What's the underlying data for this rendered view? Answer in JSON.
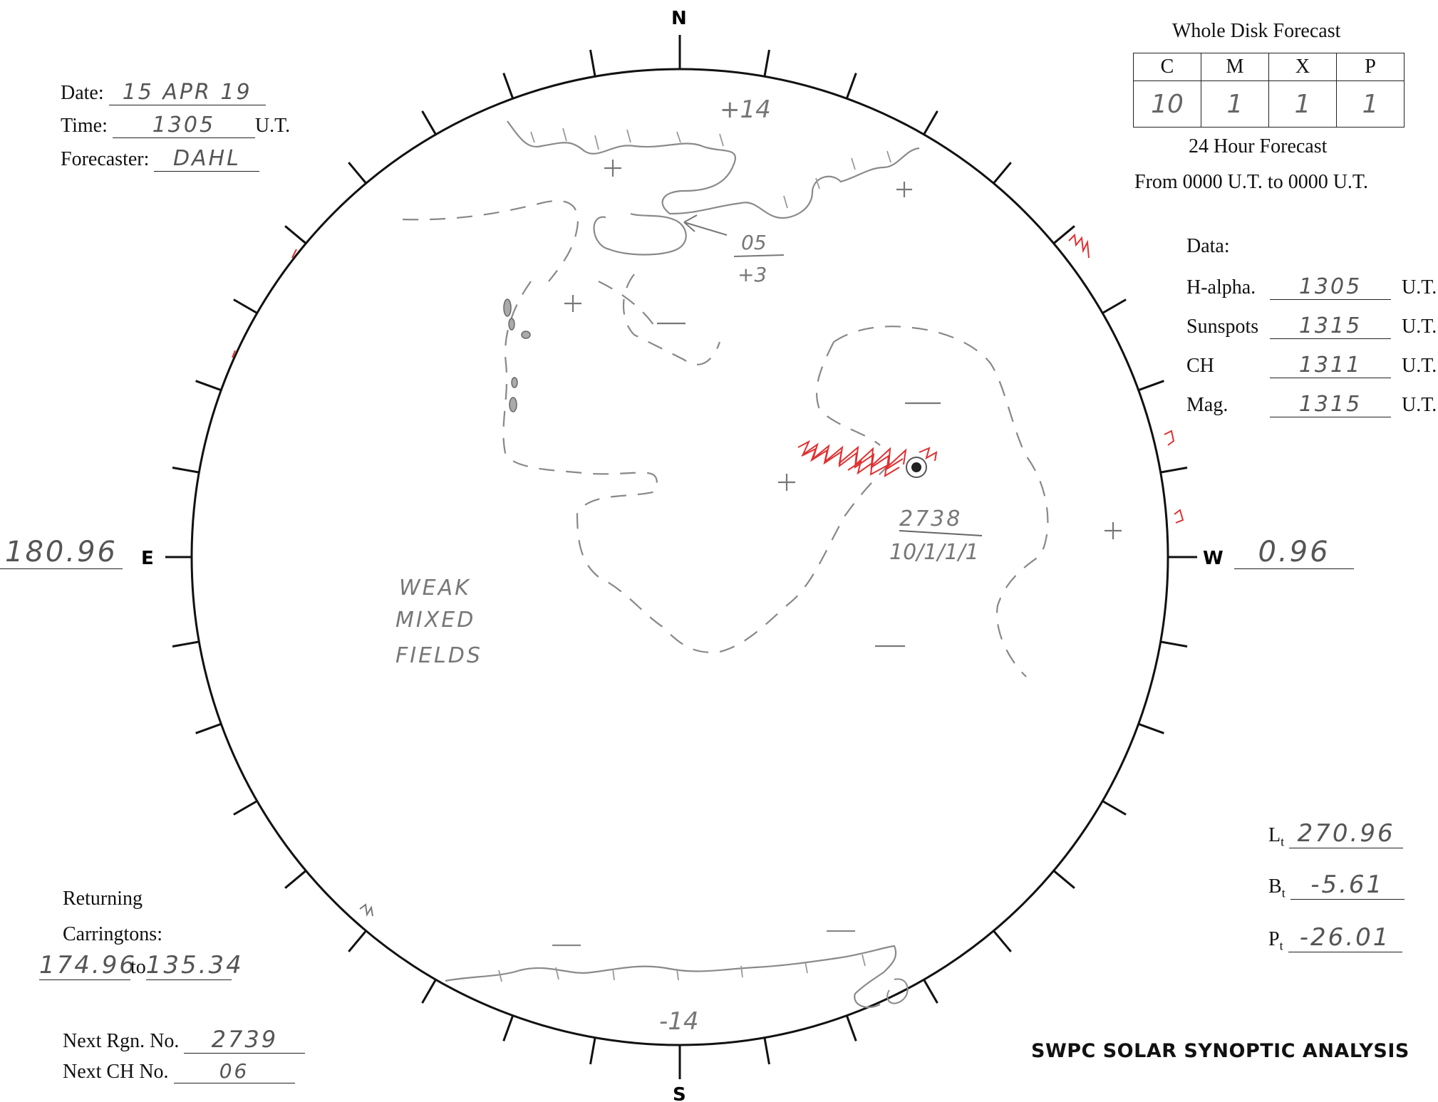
{
  "header": {
    "date_label": "Date:",
    "date_value": "15 APR 19",
    "time_label": "Time:",
    "time_value": "1305",
    "time_unit": "U.T.",
    "forecaster_label": "Forecaster:",
    "forecaster_value": "DAHL"
  },
  "forecast": {
    "title": "Whole Disk Forecast",
    "columns": [
      "C",
      "M",
      "X",
      "P"
    ],
    "values": [
      "10",
      "1",
      "1",
      "1"
    ],
    "subtitle": "24 Hour Forecast",
    "range": "From 0000 U.T. to 0000 U.T."
  },
  "data_times": {
    "heading": "Data:",
    "rows": [
      {
        "label": "H-alpha.",
        "value": "1305",
        "unit": "U.T."
      },
      {
        "label": "Sunspots",
        "value": "1315",
        "unit": "U.T."
      },
      {
        "label": "CH",
        "value": "1311",
        "unit": "U.T."
      },
      {
        "label": "Mag.",
        "value": "1315",
        "unit": "U.T."
      }
    ]
  },
  "compass": {
    "n": "N",
    "s": "S",
    "e": "E",
    "w": "W"
  },
  "limb_longitudes": {
    "east": "180.96",
    "west": "0.96"
  },
  "disk_annotations": {
    "north_polarity": "+14",
    "south_polarity": "-14",
    "ch_number": "05",
    "ch_polarity": "+3",
    "region_number": "2738",
    "region_forecast": "10/1/1/1",
    "weak_fields": [
      "WEAK",
      "MIXED",
      "FIELDS"
    ]
  },
  "ephemeris": {
    "lt_label": "L",
    "lt_sub": "t",
    "lt_value": "270.96",
    "bt_label": "B",
    "bt_sub": "t",
    "bt_value": "-5.61",
    "pt_label": "P",
    "pt_sub": "t",
    "pt_value": "-26.01"
  },
  "carringtons": {
    "label_line1": "Returning",
    "label_line2": "Carringtons:",
    "from": "174.96",
    "to_word": "to",
    "to": "135.34"
  },
  "next": {
    "rgn_label": "Next Rgn. No.",
    "rgn_value": "2739",
    "ch_label": "Next CH No.",
    "ch_value": "06"
  },
  "footer_title": "SWPC SOLAR SYNOPTIC ANALYSIS",
  "colors": {
    "ink": "#111111",
    "pencil": "#777777",
    "red_pencil": "#e03030"
  }
}
